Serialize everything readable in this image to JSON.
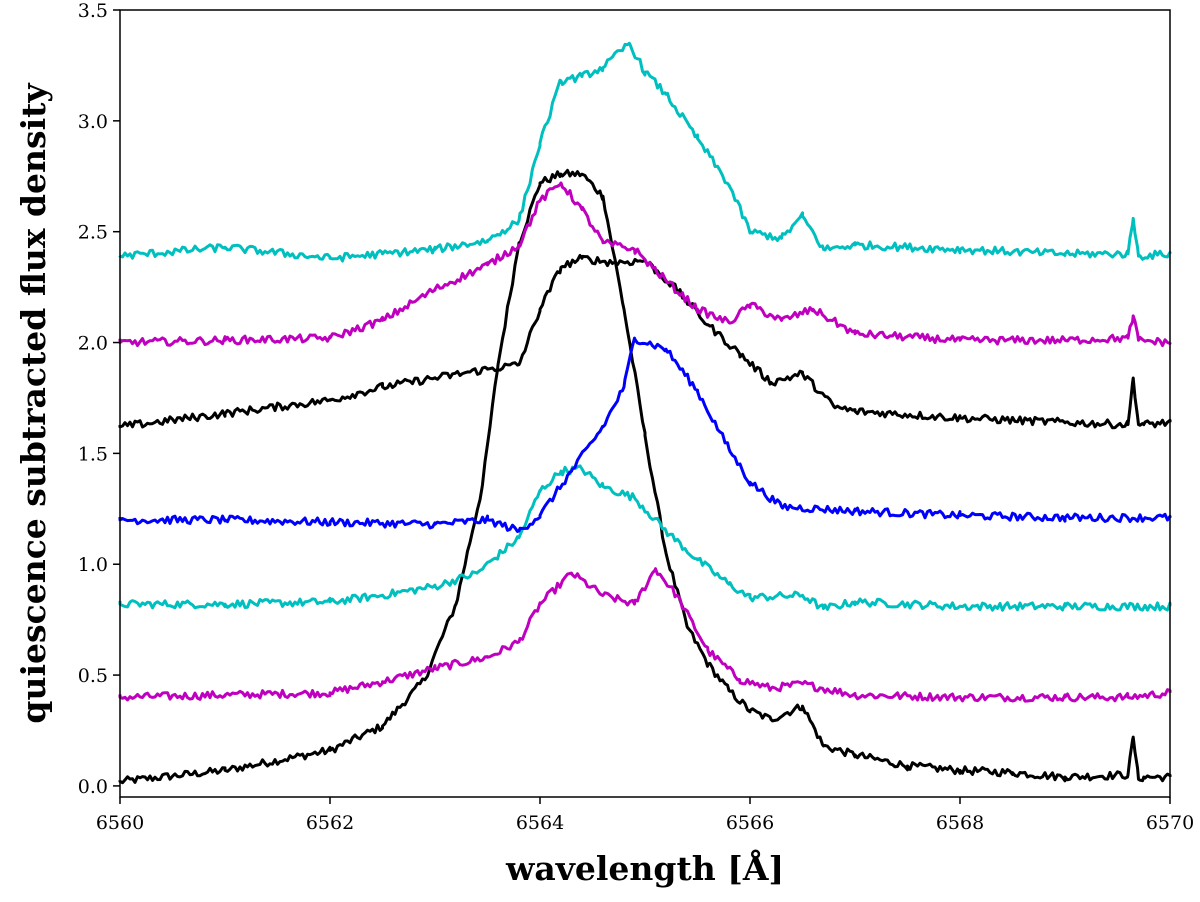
{
  "chart_data": {
    "type": "line",
    "title": "",
    "xlabel": "wavelength [Å]",
    "ylabel": "quiescence subtracted flux density",
    "xlim": [
      6560,
      6570
    ],
    "ylim": [
      -0.05,
      3.5
    ],
    "xticks": [
      6560,
      6562,
      6564,
      6566,
      6568,
      6570
    ],
    "xtick_labels": [
      "6560",
      "6562",
      "6564",
      "6566",
      "6568",
      "6570"
    ],
    "yticks": [
      0.0,
      0.5,
      1.0,
      1.5,
      2.0,
      2.5,
      3.0,
      3.5
    ],
    "ytick_labels": [
      "0.0",
      "0.5",
      "1.0",
      "1.5",
      "2.0",
      "2.5",
      "3.0",
      "3.5"
    ],
    "grid": false,
    "series": [
      {
        "name": "black (offset 0.0)",
        "color": "#000000",
        "x": [
          6560.0,
          6561.0,
          6562.0,
          6562.5,
          6562.9,
          6563.2,
          6563.45,
          6563.6,
          6563.8,
          6564.0,
          6564.2,
          6564.4,
          6564.6,
          6564.8,
          6565.0,
          6565.2,
          6565.4,
          6565.6,
          6565.8,
          6566.0,
          6566.2,
          6566.5,
          6566.7,
          6567.0,
          6567.5,
          6568.0,
          6568.5,
          6569.0,
          6569.6,
          6569.65,
          6569.7,
          6569.75,
          6570.0
        ],
        "y": [
          0.02,
          0.07,
          0.16,
          0.27,
          0.48,
          0.82,
          1.35,
          1.9,
          2.45,
          2.72,
          2.76,
          2.76,
          2.66,
          2.15,
          1.58,
          1.05,
          0.72,
          0.55,
          0.43,
          0.34,
          0.3,
          0.36,
          0.18,
          0.14,
          0.09,
          0.07,
          0.06,
          0.04,
          0.05,
          0.22,
          0.03,
          0.04,
          0.04
        ]
      },
      {
        "name": "magenta (offset 0.4)",
        "color": "#bf00bf",
        "x": [
          6560.0,
          6561.0,
          6562.0,
          6562.5,
          6563.0,
          6563.5,
          6563.8,
          6564.0,
          6564.3,
          6564.6,
          6564.9,
          6565.1,
          6565.3,
          6565.6,
          6565.9,
          6566.2,
          6566.5,
          6567.0,
          6568.0,
          6569.0,
          6569.6,
          6570.0
        ],
        "y": [
          0.4,
          0.41,
          0.42,
          0.47,
          0.53,
          0.58,
          0.65,
          0.82,
          0.96,
          0.86,
          0.82,
          0.98,
          0.86,
          0.61,
          0.48,
          0.44,
          0.46,
          0.41,
          0.4,
          0.4,
          0.4,
          0.42
        ]
      },
      {
        "name": "cyan (offset 0.8)",
        "color": "#00bfbf",
        "x": [
          6560.0,
          6561.0,
          6562.0,
          6562.5,
          6563.0,
          6563.4,
          6563.8,
          6564.0,
          6564.2,
          6564.4,
          6564.6,
          6564.9,
          6565.2,
          6565.5,
          6565.8,
          6566.0,
          6566.5,
          6566.7,
          6567.0,
          6568.0,
          6569.0,
          6570.0
        ],
        "y": [
          0.82,
          0.82,
          0.83,
          0.86,
          0.9,
          0.96,
          1.12,
          1.33,
          1.42,
          1.43,
          1.35,
          1.3,
          1.15,
          1.02,
          0.91,
          0.85,
          0.86,
          0.8,
          0.83,
          0.81,
          0.81,
          0.81
        ]
      },
      {
        "name": "blue (offset 1.2)",
        "color": "#0000ff",
        "x": [
          6560.0,
          6561.0,
          6562.0,
          6563.0,
          6563.5,
          6563.8,
          6564.0,
          6564.3,
          6564.6,
          6564.8,
          6564.9,
          6565.2,
          6565.5,
          6565.8,
          6566.0,
          6566.3,
          6567.0,
          6568.0,
          6569.0,
          6570.0
        ],
        "y": [
          1.2,
          1.2,
          1.19,
          1.18,
          1.2,
          1.15,
          1.22,
          1.42,
          1.62,
          1.8,
          2.02,
          1.97,
          1.78,
          1.52,
          1.37,
          1.26,
          1.24,
          1.22,
          1.21,
          1.21
        ]
      },
      {
        "name": "black (offset 1.6)",
        "color": "#000000",
        "x": [
          6560.0,
          6561.0,
          6562.0,
          6562.5,
          6563.0,
          6563.5,
          6563.8,
          6564.0,
          6564.2,
          6564.4,
          6564.7,
          6565.0,
          6565.3,
          6565.6,
          6565.9,
          6566.2,
          6566.5,
          6566.8,
          6567.0,
          6568.0,
          6569.0,
          6569.6,
          6569.65,
          6569.7,
          6569.75,
          6570.0
        ],
        "y": [
          1.62,
          1.68,
          1.74,
          1.8,
          1.84,
          1.88,
          1.9,
          2.15,
          2.34,
          2.38,
          2.36,
          2.37,
          2.24,
          2.08,
          1.95,
          1.82,
          1.86,
          1.71,
          1.69,
          1.66,
          1.64,
          1.63,
          1.84,
          1.63,
          1.63,
          1.64
        ]
      },
      {
        "name": "magenta (offset 2.0)",
        "color": "#bf00bf",
        "x": [
          6560.0,
          6561.0,
          6562.0,
          6562.5,
          6563.0,
          6563.5,
          6563.8,
          6564.0,
          6564.2,
          6564.4,
          6564.6,
          6564.9,
          6565.2,
          6565.5,
          6565.8,
          6566.0,
          6566.3,
          6566.6,
          6567.0,
          6568.0,
          6569.0,
          6569.6,
          6569.65,
          6569.7,
          6570.0
        ],
        "y": [
          2.0,
          2.01,
          2.02,
          2.1,
          2.24,
          2.35,
          2.44,
          2.64,
          2.72,
          2.6,
          2.45,
          2.42,
          2.28,
          2.15,
          2.09,
          2.17,
          2.1,
          2.15,
          2.04,
          2.01,
          2.01,
          2.02,
          2.12,
          2.01,
          2.0
        ]
      },
      {
        "name": "cyan (offset 2.4)",
        "color": "#00bfbf",
        "x": [
          6560.0,
          6561.0,
          6562.0,
          6562.5,
          6563.0,
          6563.5,
          6563.8,
          6564.0,
          6564.2,
          6564.4,
          6564.6,
          6564.85,
          6565.0,
          6565.2,
          6565.5,
          6565.8,
          6566.0,
          6566.3,
          6566.5,
          6566.7,
          6567.0,
          6568.0,
          6569.0,
          6569.6,
          6569.65,
          6569.7,
          6570.0
        ],
        "y": [
          2.39,
          2.43,
          2.38,
          2.4,
          2.42,
          2.46,
          2.55,
          2.9,
          3.18,
          3.2,
          3.24,
          3.35,
          3.22,
          3.12,
          2.92,
          2.71,
          2.5,
          2.47,
          2.57,
          2.42,
          2.44,
          2.42,
          2.4,
          2.4,
          2.56,
          2.39,
          2.4
        ]
      }
    ]
  }
}
